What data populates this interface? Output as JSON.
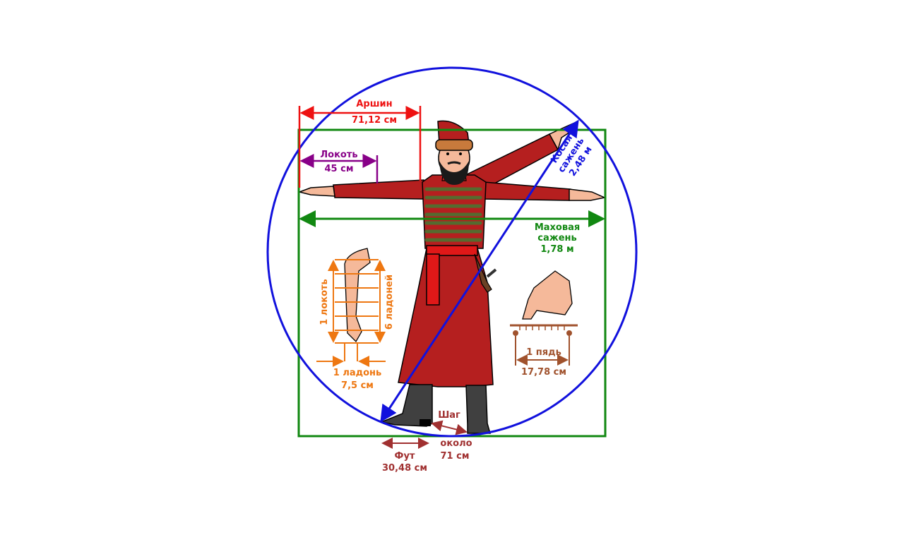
{
  "labels": {
    "arshin": "Аршин",
    "arshin_value": "71,12 см",
    "lokot": "Локоть",
    "lokot_value": "45 см",
    "kosaya_line1": "Косая",
    "kosaya_line2": "сажень",
    "kosaya_value": "2,48 м",
    "makhovaya_line1": "Маховая",
    "makhovaya_line2": "сажень",
    "makhovaya_value": "1,78 м",
    "one_lokot": "1 локоть",
    "six_ladoney": "6 ладоней",
    "one_ladon": "1 ладонь",
    "ladon_value": "7,5 см",
    "one_pyad": "1 пядь",
    "pyad_value": "17,78 см",
    "shag": "Шаг",
    "shag_value_line1": "около",
    "shag_value_line2": "71 см",
    "fut": "Фут",
    "fut_value": "30,48 см"
  },
  "colors": {
    "arshin": "#ee1111",
    "lokot": "#880088",
    "kosaya": "#1111dd",
    "makhovaya": "#118811",
    "ladon": "#ee7711",
    "pyad": "#a0522d",
    "shag": "#a03030",
    "coat": "#b51f1f",
    "skin": "#f5b99a"
  }
}
